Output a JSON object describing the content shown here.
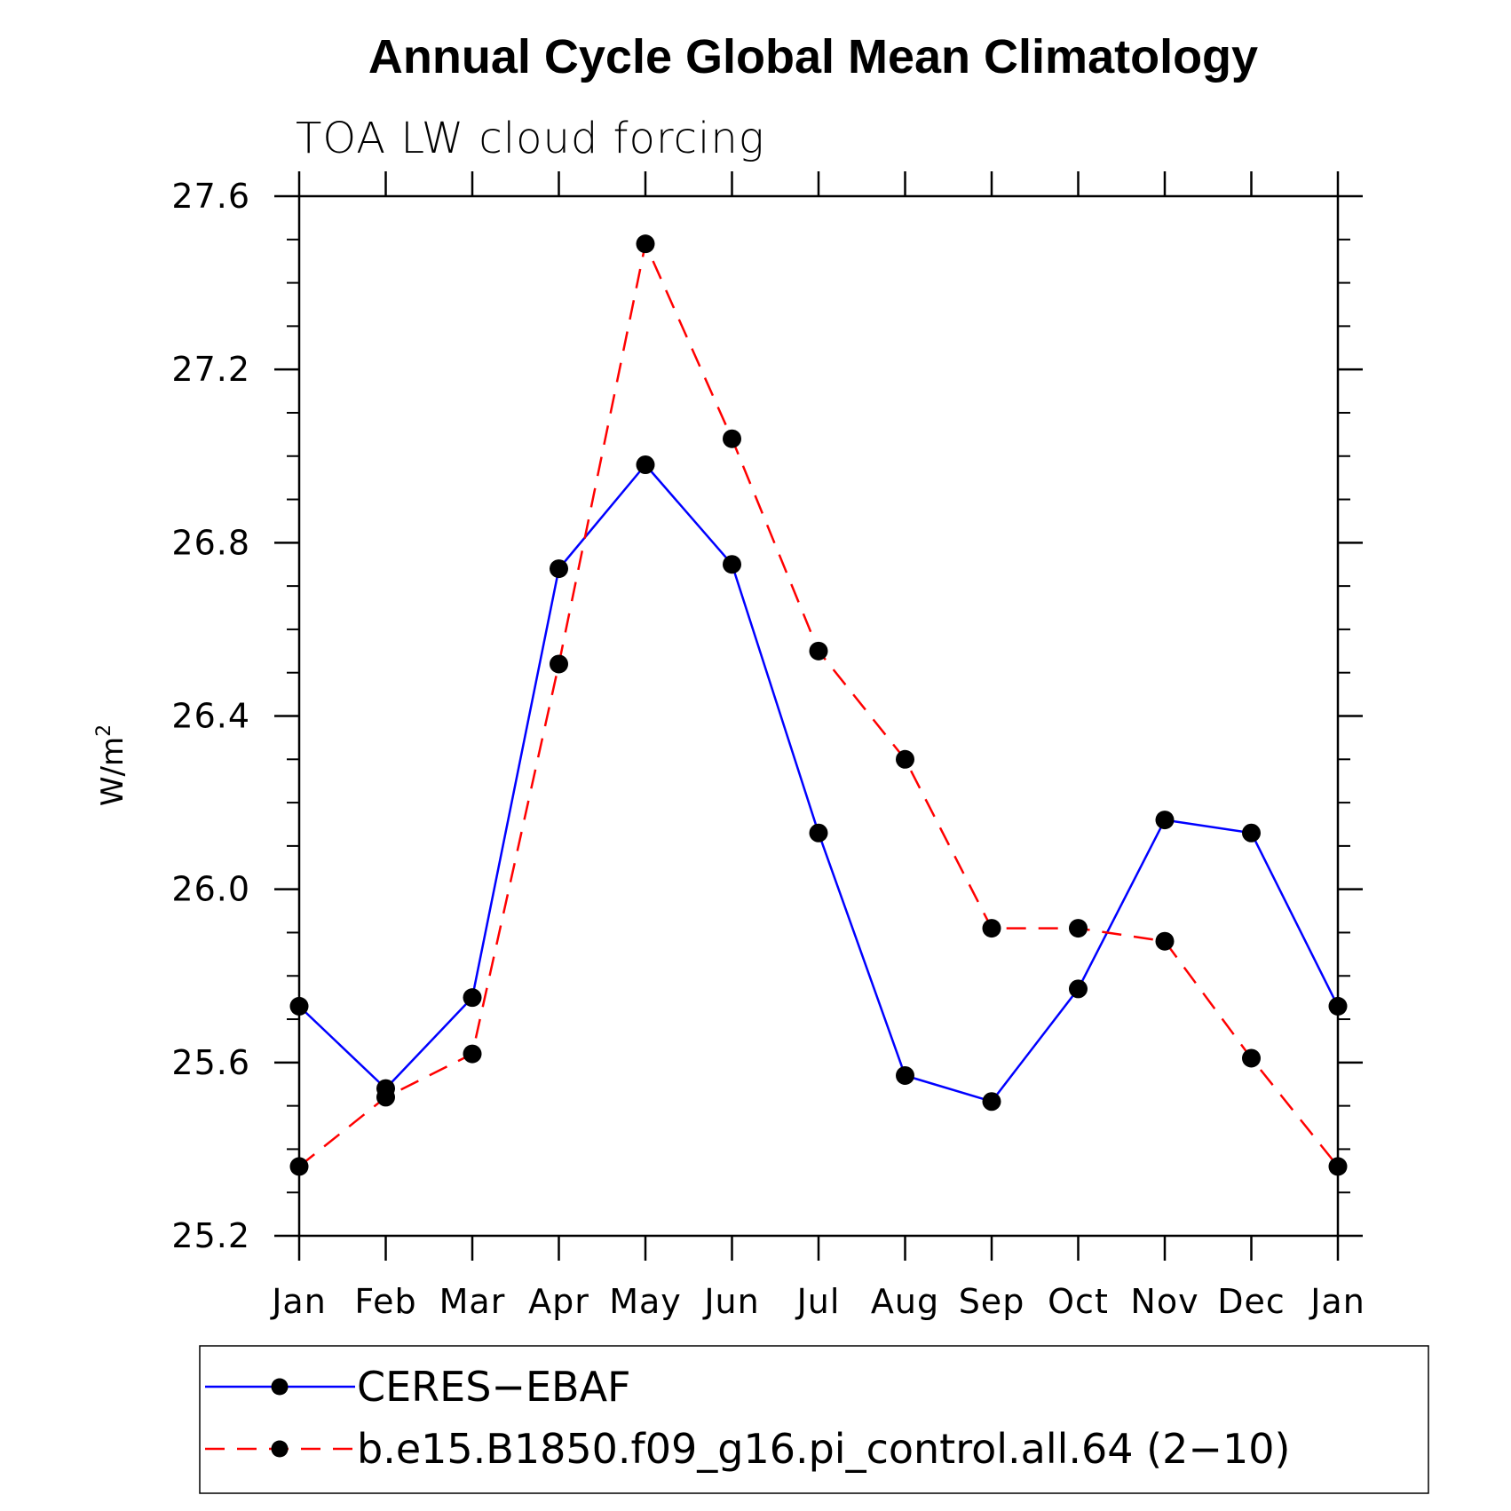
{
  "chart_data": {
    "type": "line",
    "title": "Annual Cycle Global Mean Climatology",
    "subtitle": "TOA LW cloud forcing",
    "xlabel": "",
    "ylabel": "W/m",
    "ylabel_superscript": "2",
    "categories": [
      "Jan",
      "Feb",
      "Mar",
      "Apr",
      "May",
      "Jun",
      "Jul",
      "Aug",
      "Sep",
      "Oct",
      "Nov",
      "Dec",
      "Jan"
    ],
    "ylim": [
      25.2,
      27.6
    ],
    "yticks": [
      25.2,
      25.6,
      26.0,
      26.4,
      26.8,
      27.2,
      27.6
    ],
    "ytick_labels": [
      "25.2",
      "25.6",
      "26.0",
      "26.4",
      "26.8",
      "27.2",
      "27.6"
    ],
    "series": [
      {
        "name": "CERES−EBAF",
        "color": "#0000ff",
        "dash": "solid",
        "marker": "circle",
        "values": [
          25.73,
          25.54,
          25.75,
          26.74,
          26.98,
          26.75,
          26.13,
          25.57,
          25.51,
          25.77,
          26.16,
          26.13,
          25.73
        ]
      },
      {
        "name": "b.e15.B1850.f09_g16.pi_control.all.64 (2−10)",
        "color": "#ff0000",
        "dash": "dashed",
        "marker": "circle",
        "values": [
          25.36,
          25.52,
          25.62,
          26.52,
          27.49,
          27.04,
          26.55,
          26.3,
          25.91,
          25.91,
          25.88,
          25.61,
          25.36
        ]
      }
    ],
    "grid": false,
    "legend_position": "bottom"
  }
}
